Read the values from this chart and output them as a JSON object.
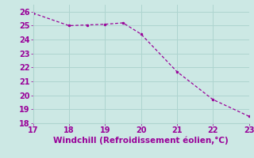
{
  "x": [
    17,
    18,
    18.5,
    19,
    19.5,
    20,
    21,
    22,
    23
  ],
  "y": [
    25.9,
    25.0,
    25.05,
    25.1,
    25.2,
    24.4,
    21.7,
    19.7,
    18.5
  ],
  "line_color": "#990099",
  "marker_color": "#990099",
  "bg_color": "#cce8e4",
  "grid_color": "#aed4cf",
  "xlabel": "Windchill (Refroidissement éolien,°C)",
  "xlabel_color": "#990099",
  "xlabel_fontsize": 7.5,
  "tick_color": "#990099",
  "tick_fontsize": 7,
  "xlim": [
    17,
    23
  ],
  "ylim": [
    18,
    26.5
  ],
  "xticks": [
    17,
    18,
    19,
    20,
    21,
    22,
    23
  ],
  "yticks": [
    18,
    19,
    20,
    21,
    22,
    23,
    24,
    25,
    26
  ]
}
